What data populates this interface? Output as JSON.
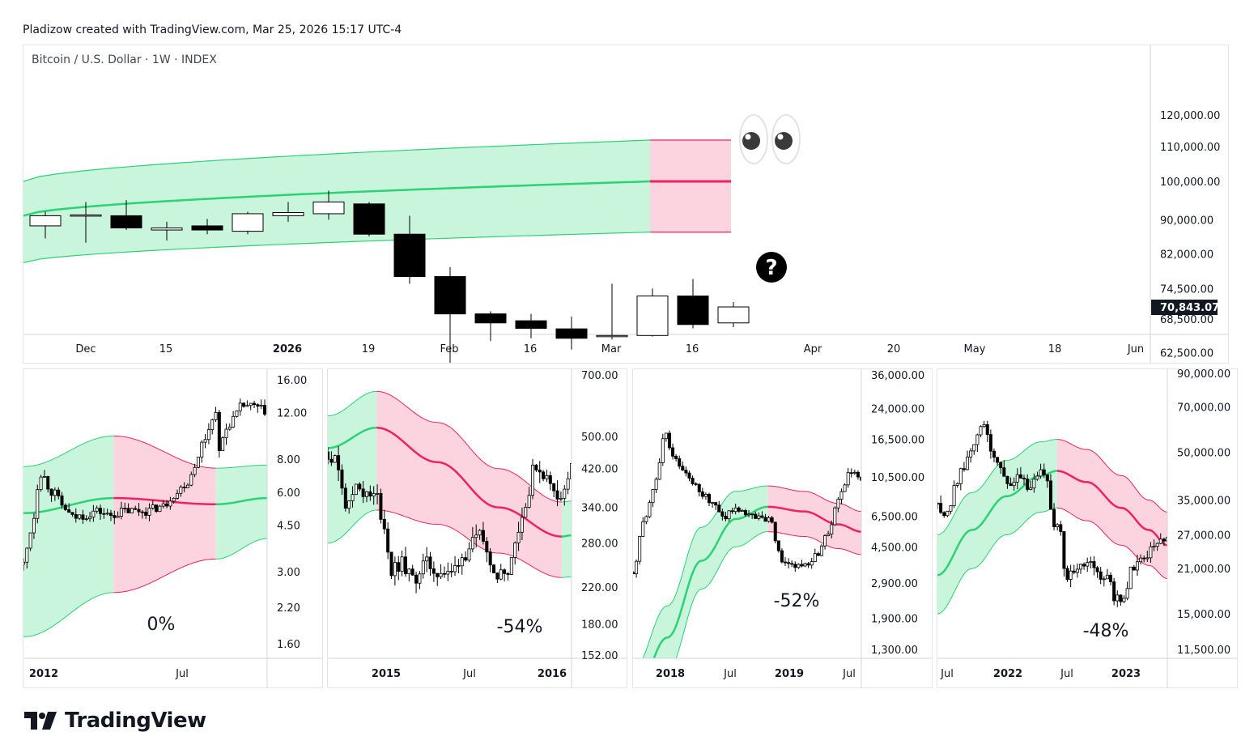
{
  "attribution": "Pladizow created with TradingView.com, Mar 25, 2026 15:17 UTC-4",
  "brand": "TradingView",
  "colors": {
    "band_green": "#c8f5dc",
    "band_pink": "#fcd4e0",
    "line_green": "#2bd373",
    "line_pink": "#ef2160",
    "candle": "#000000"
  },
  "chart_data": [
    {
      "type": "candlestick",
      "title": "Bitcoin / U.S. Dollar · 1W · INDEX",
      "x_tick_labels": [
        "Dec",
        "15",
        "2026",
        "19",
        "Feb",
        "16",
        "Mar",
        "16",
        "Apr",
        "20",
        "May",
        "18",
        "Jun"
      ],
      "y_tick_labels": [
        "120,000.00",
        "110,000.00",
        "100,000.00",
        "90,000.00",
        "82,000.00",
        "74,500.00",
        "68,500.00",
        "62,500.00"
      ],
      "y_ticks": [
        120000,
        110000,
        100000,
        90000,
        82000,
        74500,
        68500,
        62500
      ],
      "last_price": "70,843.07",
      "annotations": [
        "eyes-emoji",
        "question-mark"
      ],
      "candles": [
        {
          "o": 88500,
          "h": 92000,
          "l": 85500,
          "c": 91000
        },
        {
          "o": 91000,
          "h": 94500,
          "l": 84500,
          "c": 91200
        },
        {
          "o": 91000,
          "h": 95000,
          "l": 87500,
          "c": 88000
        },
        {
          "o": 87500,
          "h": 89500,
          "l": 85000,
          "c": 88000
        },
        {
          "o": 88500,
          "h": 90200,
          "l": 86500,
          "c": 87500
        },
        {
          "o": 87200,
          "h": 92000,
          "l": 86500,
          "c": 91500
        },
        {
          "o": 91000,
          "h": 94500,
          "l": 89500,
          "c": 91800
        },
        {
          "o": 91500,
          "h": 97500,
          "l": 90000,
          "c": 94500
        },
        {
          "o": 94000,
          "h": 94500,
          "l": 86000,
          "c": 86500
        },
        {
          "o": 86500,
          "h": 91000,
          "l": 75500,
          "c": 77000
        },
        {
          "o": 77000,
          "h": 79000,
          "l": 60500,
          "c": 69500
        },
        {
          "o": 69500,
          "h": 70000,
          "l": 64500,
          "c": 67800
        },
        {
          "o": 68200,
          "h": 69500,
          "l": 65000,
          "c": 66800
        },
        {
          "o": 66700,
          "h": 69000,
          "l": 63000,
          "c": 65000
        },
        {
          "o": 65400,
          "h": 75500,
          "l": 64800,
          "c": 65500
        },
        {
          "o": 65500,
          "h": 74500,
          "l": 65300,
          "c": 73000
        },
        {
          "o": 73000,
          "h": 76500,
          "l": 66800,
          "c": 67500
        },
        {
          "o": 67800,
          "h": 71800,
          "l": 67000,
          "c": 70843
        }
      ],
      "band": {
        "mid_start": 91000,
        "mid_end": 100000,
        "upper_start": 100000,
        "upper_end": 112000,
        "lower_start": 80000,
        "lower_end": 87000
      }
    },
    {
      "type": "line",
      "scale": "log",
      "x_tick_labels": [
        "2012",
        "Jul"
      ],
      "y_tick_labels": [
        "16.00",
        "12.00",
        "8.00",
        "6.00",
        "4.50",
        "3.00",
        "2.20",
        "1.60"
      ],
      "y_ticks": [
        16,
        12,
        8,
        6,
        4.5,
        3,
        2.2,
        1.6
      ],
      "y_range": [
        1.5,
        19
      ],
      "label": "0%",
      "band": {
        "green1_end": 0.37,
        "pink_end": 0.79,
        "mid": [
          [
            0,
            5.0
          ],
          [
            0.37,
            5.7
          ],
          [
            0.79,
            5.4
          ],
          [
            1,
            5.7
          ]
        ],
        "upper": [
          [
            0,
            7.5
          ],
          [
            0.37,
            9.8
          ],
          [
            0.79,
            7.4
          ],
          [
            1,
            7.6
          ]
        ],
        "lower": [
          [
            0,
            1.7
          ],
          [
            0.37,
            2.5
          ],
          [
            0.79,
            3.35
          ],
          [
            1,
            4.0
          ]
        ]
      },
      "price": [
        [
          0,
          3.2
        ],
        [
          0.03,
          4.3
        ],
        [
          0.07,
          7.1
        ],
        [
          0.12,
          6.0
        ],
        [
          0.17,
          5.2
        ],
        [
          0.2,
          4.8
        ],
        [
          0.25,
          4.9
        ],
        [
          0.3,
          5.1
        ],
        [
          0.35,
          4.9
        ],
        [
          0.42,
          5.1
        ],
        [
          0.5,
          5.1
        ],
        [
          0.57,
          5.3
        ],
        [
          0.62,
          5.9
        ],
        [
          0.67,
          6.5
        ],
        [
          0.71,
          7.8
        ],
        [
          0.74,
          9.5
        ],
        [
          0.77,
          11.0
        ],
        [
          0.79,
          12.5
        ],
        [
          0.8,
          8.3
        ],
        [
          0.83,
          10.4
        ],
        [
          0.86,
          11.4
        ],
        [
          0.9,
          12.8
        ],
        [
          0.95,
          12.6
        ],
        [
          0.99,
          12.2
        ]
      ],
      "price_end": 0.99
    },
    {
      "type": "line",
      "scale": "log",
      "x_tick_labels": [
        "2015",
        "Jul",
        "2016"
      ],
      "y_tick_labels": [
        "700.00",
        "500.00",
        "420.00",
        "340.00",
        "280.00",
        "220.00",
        "180.00",
        "152.00"
      ],
      "y_ticks": [
        700,
        500,
        420,
        340,
        280,
        220,
        180,
        152
      ],
      "y_range": [
        150,
        720
      ],
      "label": "-54%",
      "band": {
        "green1_end": 0.2,
        "pink_end": 0.96,
        "mid": [
          [
            0,
            470
          ],
          [
            0.2,
            525
          ],
          [
            0.45,
            435
          ],
          [
            0.7,
            340
          ],
          [
            0.96,
            290
          ],
          [
            1,
            292
          ]
        ],
        "upper": [
          [
            0,
            560
          ],
          [
            0.2,
            640
          ],
          [
            0.45,
            540
          ],
          [
            0.7,
            420
          ],
          [
            0.96,
            350
          ],
          [
            1,
            352
          ]
        ],
        "lower": [
          [
            0,
            280
          ],
          [
            0.2,
            335
          ],
          [
            0.45,
            310
          ],
          [
            0.7,
            265
          ],
          [
            0.96,
            232
          ],
          [
            1,
            233
          ]
        ]
      },
      "price": [
        [
          0,
          460
        ],
        [
          0.04,
          430
        ],
        [
          0.08,
          340
        ],
        [
          0.12,
          390
        ],
        [
          0.16,
          360
        ],
        [
          0.2,
          360
        ],
        [
          0.23,
          310
        ],
        [
          0.26,
          240
        ],
        [
          0.3,
          250
        ],
        [
          0.35,
          230
        ],
        [
          0.4,
          250
        ],
        [
          0.45,
          240
        ],
        [
          0.5,
          235
        ],
        [
          0.55,
          260
        ],
        [
          0.6,
          280
        ],
        [
          0.63,
          290
        ],
        [
          0.66,
          260
        ],
        [
          0.7,
          235
        ],
        [
          0.74,
          245
        ],
        [
          0.78,
          300
        ],
        [
          0.82,
          360
        ],
        [
          0.85,
          430
        ],
        [
          0.88,
          410
        ],
        [
          0.92,
          380
        ],
        [
          0.96,
          360
        ],
        [
          1,
          420
        ]
      ],
      "price_end": 1
    },
    {
      "type": "line",
      "scale": "log",
      "x_tick_labels": [
        "2018",
        "Jul",
        "2019",
        "Jul"
      ],
      "y_tick_labels": [
        "36,000.00",
        "24,000.00",
        "16,500.00",
        "10,500.00",
        "6,500.00",
        "4,500.00",
        "2,900.00",
        "1,900.00",
        "1,300.00"
      ],
      "y_ticks": [
        36000,
        24000,
        16500,
        10500,
        6500,
        4500,
        2900,
        1900,
        1300
      ],
      "y_range": [
        1150,
        38000
      ],
      "label": "-52%",
      "band": {
        "green1_end": 0.59,
        "pink_end": 1.0,
        "mid": [
          [
            0,
            700
          ],
          [
            0.15,
            1500
          ],
          [
            0.3,
            3800
          ],
          [
            0.45,
            6300
          ],
          [
            0.59,
            7300
          ],
          [
            0.75,
            6900
          ],
          [
            0.9,
            5900
          ],
          [
            1,
            5400
          ]
        ],
        "upper": [
          [
            0,
            1000
          ],
          [
            0.15,
            2200
          ],
          [
            0.3,
            5700
          ],
          [
            0.45,
            8800
          ],
          [
            0.59,
            9400
          ],
          [
            0.75,
            8800
          ],
          [
            0.9,
            7600
          ],
          [
            1,
            6900
          ]
        ],
        "lower": [
          [
            0,
            530
          ],
          [
            0.15,
            1000
          ],
          [
            0.3,
            2700
          ],
          [
            0.45,
            4500
          ],
          [
            0.59,
            5400
          ],
          [
            0.75,
            5100
          ],
          [
            0.9,
            4400
          ],
          [
            1,
            4100
          ]
        ]
      },
      "price": [
        [
          0,
          3300
        ],
        [
          0.05,
          6500
        ],
        [
          0.1,
          10000
        ],
        [
          0.14,
          18000
        ],
        [
          0.18,
          13000
        ],
        [
          0.22,
          11000
        ],
        [
          0.26,
          9800
        ],
        [
          0.3,
          8500
        ],
        [
          0.35,
          7500
        ],
        [
          0.4,
          6500
        ],
        [
          0.45,
          7200
        ],
        [
          0.5,
          6800
        ],
        [
          0.55,
          6400
        ],
        [
          0.6,
          6300
        ],
        [
          0.63,
          4500
        ],
        [
          0.66,
          3600
        ],
        [
          0.7,
          3500
        ],
        [
          0.75,
          3600
        ],
        [
          0.8,
          4000
        ],
        [
          0.85,
          5300
        ],
        [
          0.9,
          8000
        ],
        [
          0.95,
          11500
        ],
        [
          1,
          10000
        ]
      ],
      "price_end": 1
    },
    {
      "type": "line",
      "scale": "log",
      "x_tick_labels": [
        "Jul",
        "2022",
        "Jul",
        "2023"
      ],
      "y_tick_labels": [
        "90,000.00",
        "70,000.00",
        "50,000.00",
        "35,000.00",
        "27,000.00",
        "21,000.00",
        "15,000.00",
        "11,500.00"
      ],
      "y_ticks": [
        90000,
        70000,
        50000,
        35000,
        27000,
        21000,
        15000,
        11500
      ],
      "y_range": [
        11000,
        95000
      ],
      "label": "-48%",
      "band": {
        "green1_end": 0.52,
        "pink_end": 1.0,
        "mid": [
          [
            0,
            20000
          ],
          [
            0.15,
            28000
          ],
          [
            0.3,
            36000
          ],
          [
            0.45,
            42000
          ],
          [
            0.52,
            43500
          ],
          [
            0.65,
            40000
          ],
          [
            0.8,
            33000
          ],
          [
            0.92,
            28000
          ],
          [
            1,
            25000
          ]
        ],
        "upper": [
          [
            0,
            27000
          ],
          [
            0.15,
            37000
          ],
          [
            0.3,
            47000
          ],
          [
            0.45,
            54000
          ],
          [
            0.52,
            55000
          ],
          [
            0.65,
            51000
          ],
          [
            0.8,
            42000
          ],
          [
            0.92,
            35000
          ],
          [
            1,
            32000
          ]
        ],
        "lower": [
          [
            0,
            15000
          ],
          [
            0.15,
            21000
          ],
          [
            0.3,
            27000
          ],
          [
            0.45,
            32000
          ],
          [
            0.52,
            33000
          ],
          [
            0.65,
            30000
          ],
          [
            0.8,
            25000
          ],
          [
            0.92,
            21500
          ],
          [
            1,
            19500
          ]
        ]
      },
      "price": [
        [
          0,
          34000
        ],
        [
          0.04,
          31000
        ],
        [
          0.08,
          40000
        ],
        [
          0.13,
          47000
        ],
        [
          0.17,
          55000
        ],
        [
          0.2,
          61000
        ],
        [
          0.24,
          50000
        ],
        [
          0.28,
          44000
        ],
        [
          0.32,
          38000
        ],
        [
          0.36,
          42000
        ],
        [
          0.4,
          39000
        ],
        [
          0.44,
          43000
        ],
        [
          0.48,
          40000
        ],
        [
          0.5,
          30000
        ],
        [
          0.53,
          29000
        ],
        [
          0.56,
          20000
        ],
        [
          0.6,
          20500
        ],
        [
          0.65,
          22000
        ],
        [
          0.7,
          20000
        ],
        [
          0.74,
          19500
        ],
        [
          0.77,
          17000
        ],
        [
          0.8,
          16500
        ],
        [
          0.85,
          21000
        ],
        [
          0.9,
          23000
        ],
        [
          0.95,
          25000
        ],
        [
          1,
          27000
        ]
      ],
      "price_end": 1
    }
  ]
}
